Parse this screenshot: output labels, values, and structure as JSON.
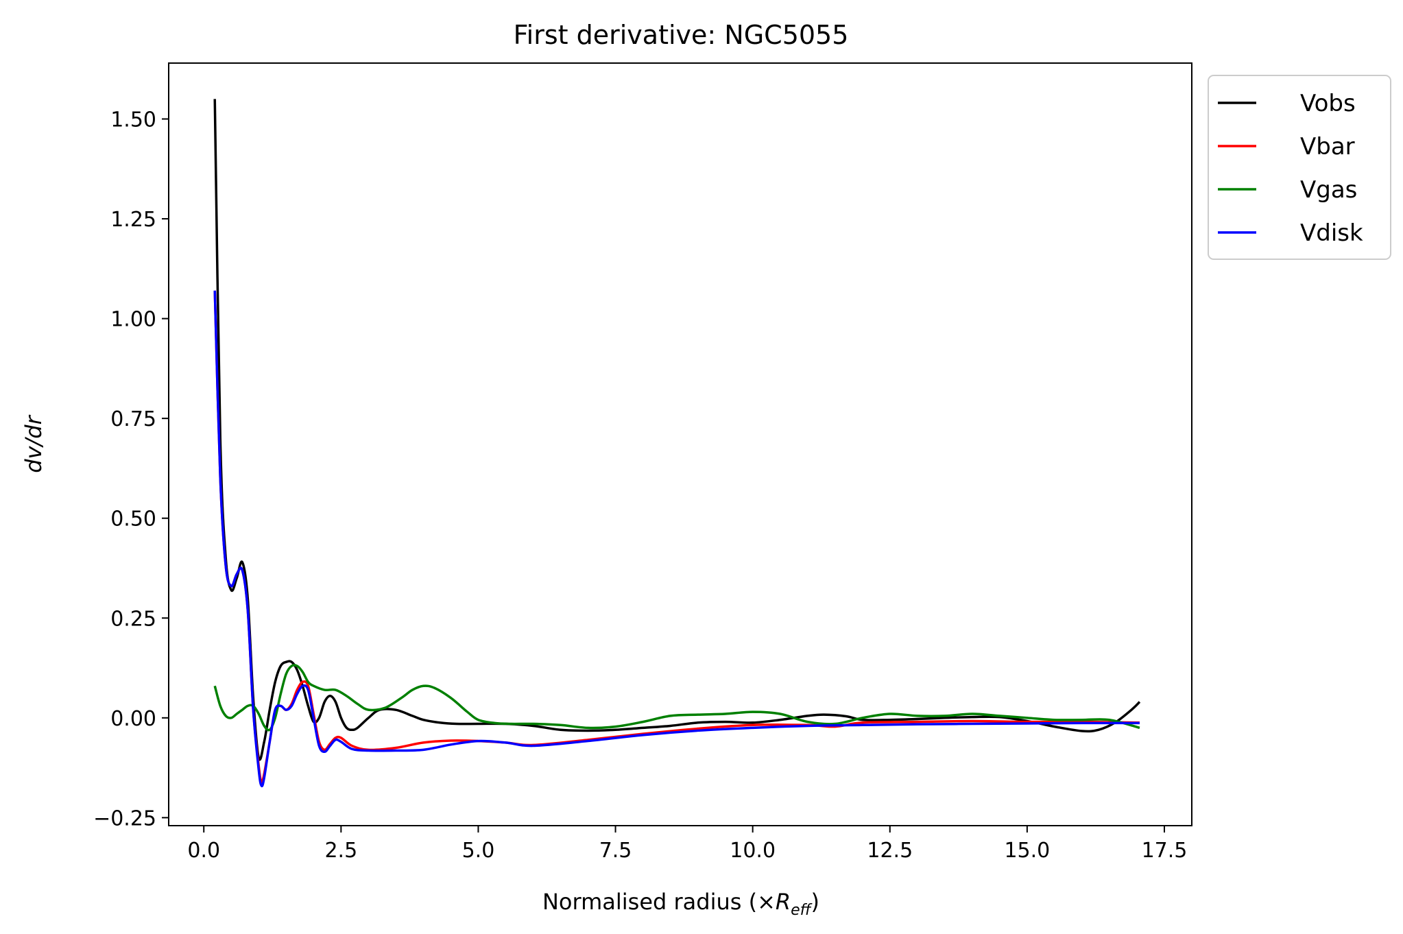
{
  "chart_data": {
    "type": "line",
    "title": "First derivative: NGC5055",
    "xlabel": "Normalised radius (×R_eff)",
    "xlabel_main": "Normalised radius (×",
    "xlabel_italic": "R",
    "xlabel_sub": "eff",
    "xlabel_close": ")",
    "ylabel": "dv/dr",
    "xlim": [
      -0.64,
      18.0
    ],
    "ylim": [
      -0.27,
      1.64
    ],
    "xticks": [
      0.0,
      2.5,
      5.0,
      7.5,
      10.0,
      12.5,
      15.0,
      17.5
    ],
    "xtick_labels": [
      "0.0",
      "2.5",
      "5.0",
      "7.5",
      "10.0",
      "12.5",
      "15.0",
      "17.5"
    ],
    "yticks": [
      -0.25,
      0.0,
      0.25,
      0.5,
      0.75,
      1.0,
      1.25,
      1.5
    ],
    "ytick_labels": [
      "−0.25",
      "0.00",
      "0.25",
      "0.50",
      "0.75",
      "1.00",
      "1.25",
      "1.50"
    ],
    "grid": false,
    "legend_position": "outside-top-right",
    "series": [
      {
        "name": "Vobs",
        "color": "#000000",
        "x": [
          0.2,
          0.3,
          0.4,
          0.5,
          0.6,
          0.7,
          0.8,
          0.9,
          1.0,
          1.1,
          1.2,
          1.3,
          1.4,
          1.5,
          1.6,
          1.7,
          1.8,
          1.9,
          2.0,
          2.1,
          2.2,
          2.3,
          2.4,
          2.5,
          2.6,
          2.7,
          2.8,
          3.0,
          3.2,
          3.5,
          3.8,
          4.0,
          4.3,
          4.6,
          5.0,
          5.5,
          6.0,
          6.5,
          7.0,
          7.5,
          8.0,
          8.5,
          9.0,
          9.5,
          10.0,
          10.5,
          11.0,
          11.3,
          11.7,
          12.0,
          12.5,
          13.0,
          13.5,
          14.0,
          14.5,
          15.0,
          15.5,
          16.0,
          16.3,
          16.6,
          16.9,
          17.05
        ],
        "y": [
          1.55,
          0.7,
          0.4,
          0.32,
          0.35,
          0.39,
          0.3,
          0.05,
          -0.1,
          -0.06,
          0.02,
          0.09,
          0.13,
          0.14,
          0.14,
          0.12,
          0.08,
          0.03,
          -0.01,
          0.0,
          0.04,
          0.055,
          0.04,
          0.0,
          -0.025,
          -0.03,
          -0.025,
          0.0,
          0.02,
          0.02,
          0.005,
          -0.005,
          -0.012,
          -0.015,
          -0.015,
          -0.015,
          -0.02,
          -0.03,
          -0.032,
          -0.03,
          -0.025,
          -0.02,
          -0.012,
          -0.01,
          -0.012,
          -0.005,
          0.005,
          0.008,
          0.004,
          -0.005,
          -0.005,
          -0.003,
          0.0,
          0.002,
          0.002,
          -0.008,
          -0.022,
          -0.033,
          -0.03,
          -0.012,
          0.02,
          0.04
        ]
      },
      {
        "name": "Vbar",
        "color": "#ff0000",
        "x": [
          0.2,
          0.3,
          0.4,
          0.5,
          0.6,
          0.7,
          0.8,
          0.9,
          1.0,
          1.05,
          1.1,
          1.2,
          1.3,
          1.4,
          1.5,
          1.6,
          1.7,
          1.8,
          1.9,
          2.0,
          2.1,
          2.2,
          2.3,
          2.4,
          2.5,
          2.7,
          3.0,
          3.5,
          4.0,
          4.5,
          5.0,
          5.5,
          6.0,
          7.0,
          8.0,
          9.0,
          10.0,
          11.0,
          11.5,
          12.0,
          13.0,
          14.0,
          15.0,
          16.0,
          17.05
        ],
        "y": [
          1.07,
          0.6,
          0.38,
          0.33,
          0.36,
          0.37,
          0.27,
          0.02,
          -0.12,
          -0.16,
          -0.14,
          -0.06,
          0.02,
          0.03,
          0.02,
          0.035,
          0.07,
          0.09,
          0.08,
          0.01,
          -0.06,
          -0.08,
          -0.065,
          -0.05,
          -0.05,
          -0.07,
          -0.08,
          -0.075,
          -0.062,
          -0.057,
          -0.058,
          -0.062,
          -0.068,
          -0.055,
          -0.04,
          -0.027,
          -0.018,
          -0.018,
          -0.022,
          -0.012,
          -0.01,
          -0.008,
          -0.01,
          -0.01,
          -0.012
        ]
      },
      {
        "name": "Vgas",
        "color": "#008000",
        "x": [
          0.2,
          0.3,
          0.4,
          0.5,
          0.6,
          0.7,
          0.8,
          0.9,
          1.0,
          1.1,
          1.2,
          1.3,
          1.4,
          1.5,
          1.6,
          1.7,
          1.8,
          1.9,
          2.0,
          2.2,
          2.4,
          2.6,
          2.8,
          3.0,
          3.3,
          3.6,
          3.8,
          4.0,
          4.2,
          4.5,
          4.8,
          5.0,
          5.3,
          5.6,
          6.0,
          6.5,
          7.0,
          7.5,
          8.0,
          8.5,
          9.0,
          9.5,
          10.0,
          10.5,
          11.0,
          11.5,
          12.0,
          12.5,
          13.0,
          13.5,
          14.0,
          14.5,
          15.0,
          15.5,
          16.0,
          16.5,
          17.05
        ],
        "y": [
          0.08,
          0.03,
          0.005,
          0.0,
          0.01,
          0.02,
          0.03,
          0.03,
          0.01,
          -0.02,
          -0.03,
          0.0,
          0.06,
          0.11,
          0.13,
          0.13,
          0.115,
          0.09,
          0.08,
          0.07,
          0.07,
          0.055,
          0.035,
          0.02,
          0.025,
          0.05,
          0.07,
          0.08,
          0.075,
          0.05,
          0.015,
          -0.005,
          -0.013,
          -0.015,
          -0.015,
          -0.018,
          -0.025,
          -0.022,
          -0.01,
          0.005,
          0.008,
          0.01,
          0.015,
          0.01,
          -0.01,
          -0.015,
          0.0,
          0.01,
          0.005,
          0.005,
          0.01,
          0.005,
          0.0,
          -0.005,
          -0.005,
          -0.005,
          -0.025
        ]
      },
      {
        "name": "Vdisk",
        "color": "#0000ff",
        "x": [
          0.2,
          0.3,
          0.4,
          0.5,
          0.6,
          0.7,
          0.8,
          0.9,
          1.0,
          1.05,
          1.1,
          1.2,
          1.3,
          1.4,
          1.5,
          1.6,
          1.7,
          1.8,
          1.9,
          2.0,
          2.1,
          2.2,
          2.3,
          2.4,
          2.5,
          2.7,
          3.0,
          3.5,
          4.0,
          4.5,
          5.0,
          5.5,
          6.0,
          7.0,
          8.0,
          9.0,
          10.0,
          11.0,
          12.0,
          13.0,
          14.0,
          15.0,
          16.0,
          17.05
        ],
        "y": [
          1.07,
          0.6,
          0.38,
          0.33,
          0.36,
          0.37,
          0.27,
          0.02,
          -0.13,
          -0.17,
          -0.15,
          -0.06,
          0.02,
          0.03,
          0.02,
          0.03,
          0.06,
          0.08,
          0.07,
          0.0,
          -0.07,
          -0.085,
          -0.07,
          -0.055,
          -0.06,
          -0.078,
          -0.082,
          -0.082,
          -0.08,
          -0.067,
          -0.058,
          -0.062,
          -0.07,
          -0.058,
          -0.043,
          -0.032,
          -0.025,
          -0.02,
          -0.018,
          -0.016,
          -0.015,
          -0.014,
          -0.013,
          -0.013
        ]
      }
    ]
  }
}
